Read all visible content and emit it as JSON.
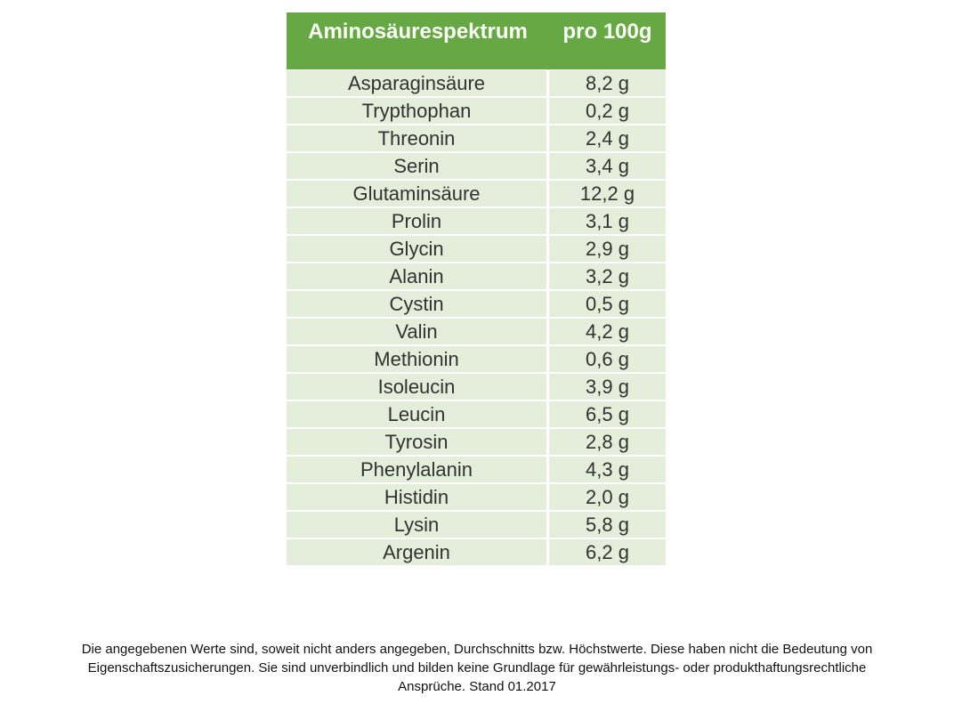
{
  "table": {
    "header": {
      "title": "Aminosäurespektrum",
      "unit_label": "pro 100g"
    },
    "rows": [
      {
        "name": "Asparaginsäure",
        "amount": "8,2 g"
      },
      {
        "name": "Trypthophan",
        "amount": "0,2 g"
      },
      {
        "name": "Threonin",
        "amount": "2,4 g"
      },
      {
        "name": "Serin",
        "amount": "3,4 g"
      },
      {
        "name": "Glutaminsäure",
        "amount": "12,2 g"
      },
      {
        "name": "Prolin",
        "amount": "3,1 g"
      },
      {
        "name": "Glycin",
        "amount": "2,9 g"
      },
      {
        "name": "Alanin",
        "amount": "3,2 g"
      },
      {
        "name": "Cystin",
        "amount": "0,5 g"
      },
      {
        "name": "Valin",
        "amount": "4,2 g"
      },
      {
        "name": "Methionin",
        "amount": "0,6 g"
      },
      {
        "name": "Isoleucin",
        "amount": "3,9 g"
      },
      {
        "name": "Leucin",
        "amount": "6,5 g"
      },
      {
        "name": "Tyrosin",
        "amount": "2,8 g"
      },
      {
        "name": "Phenylalanin",
        "amount": "4,3 g"
      },
      {
        "name": "Histidin",
        "amount": "2,0 g"
      },
      {
        "name": "Lysin",
        "amount": "5,8 g"
      },
      {
        "name": "Argenin",
        "amount": "6,2 g"
      }
    ]
  },
  "footer": {
    "lines": [
      "Die angegebenen Werte sind, soweit nicht anders angegeben, Durchschnitts bzw. Höchstwerte. Diese haben nicht die Bedeutung von",
      "Eigenschaftszusicherungen. Sie sind unverbindlich und bilden keine Grundlage für gewährleistungs- oder produkthaftungsrechtliche",
      "Ansprüche. Stand 01.2017"
    ]
  },
  "colors": {
    "header_background": "#65a844",
    "header_text": "#fdfdf8",
    "row_background": "#e4eeda",
    "row_text": "#333333",
    "separator": "#ffffff"
  }
}
